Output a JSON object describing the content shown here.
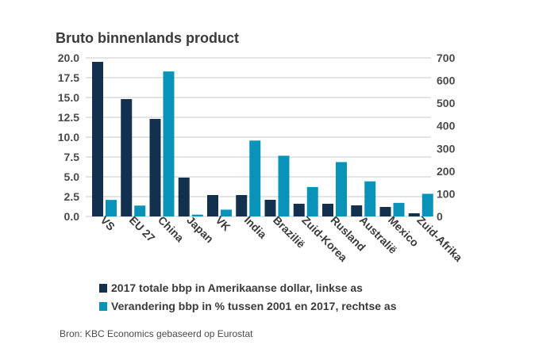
{
  "colors": {
    "series_left": "#13314f",
    "series_right": "#0a93b8",
    "grid": "#c8c8c8"
  },
  "chart_data": {
    "type": "bar",
    "title": "Bruto binnenlands product",
    "categories": [
      "VS",
      "EU 27",
      "China",
      "Japan",
      "VK",
      "India",
      "Brazilië",
      "Zuid-Korea",
      "Rusland",
      "Australië",
      "Mexico",
      "Zuid-Afrika"
    ],
    "series": [
      {
        "name": "2017 totale bbp in Amerikaanse dollar, linkse as",
        "axis": "left",
        "values": [
          19.5,
          14.8,
          12.3,
          4.9,
          2.7,
          2.7,
          2.1,
          1.6,
          1.6,
          1.4,
          1.2,
          0.4
        ]
      },
      {
        "name": "Verandering bbp in % tussen 2001 en 2017, rechtse as",
        "axis": "right",
        "values": [
          73,
          48,
          640,
          8,
          30,
          335,
          268,
          130,
          240,
          155,
          60,
          100
        ]
      }
    ],
    "y_left": {
      "lim": [
        0,
        20
      ],
      "ticks": [
        "0.0",
        "2.5",
        "5.0",
        "7.5",
        "10.0",
        "12.5",
        "15.0",
        "17.5",
        "20.0"
      ]
    },
    "y_right": {
      "lim": [
        0,
        700
      ],
      "ticks": [
        "0",
        "100",
        "200",
        "300",
        "400",
        "500",
        "600",
        "700"
      ]
    },
    "grid": true,
    "legend_position": "bottom"
  },
  "source": "Bron: KBC Economics gebaseerd op Eurostat"
}
